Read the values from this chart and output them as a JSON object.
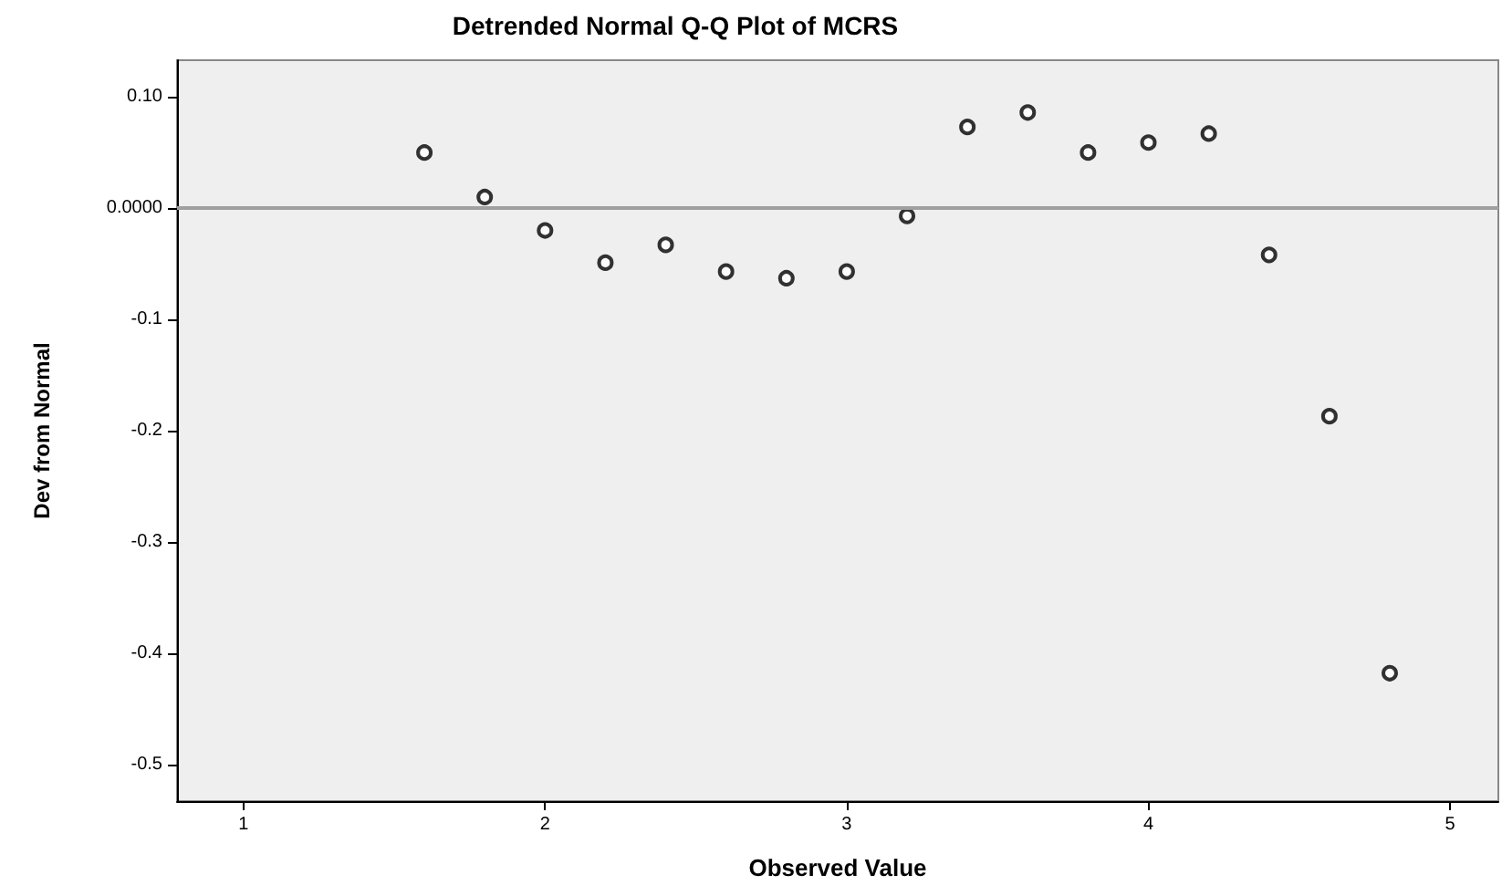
{
  "chart_data": {
    "type": "scatter",
    "title": "Detrended Normal Q-Q Plot of MCRS",
    "xlabel": "Observed Value",
    "ylabel": "Dev from Normal",
    "x": [
      1.6,
      1.8,
      2.0,
      2.2,
      2.4,
      2.6,
      2.8,
      3.0,
      3.2,
      3.4,
      3.6,
      3.8,
      4.0,
      4.2,
      4.4,
      4.6,
      4.8
    ],
    "values": [
      0.05,
      0.01,
      -0.02,
      -0.049,
      -0.033,
      -0.057,
      -0.063,
      -0.057,
      -0.007,
      0.073,
      0.086,
      0.05,
      0.059,
      0.067,
      -0.042,
      -0.187,
      -0.418
    ],
    "color": "#000000",
    "marker": "circle",
    "grid": false,
    "xlim": [
      0.78,
      5.16
    ],
    "xticks": [
      1,
      2,
      3,
      4,
      5
    ],
    "ylim": [
      -0.533,
      0.133
    ],
    "yticks": [
      {
        "value": 0.1,
        "label": "0.10"
      },
      {
        "value": 0,
        "label": "0.0000"
      },
      -0.1,
      -0.2,
      -0.3,
      -0.4,
      -0.5
    ],
    "ref_lines": [
      {
        "axis": "y",
        "value": 0,
        "color": "#a0a0a0"
      }
    ]
  }
}
